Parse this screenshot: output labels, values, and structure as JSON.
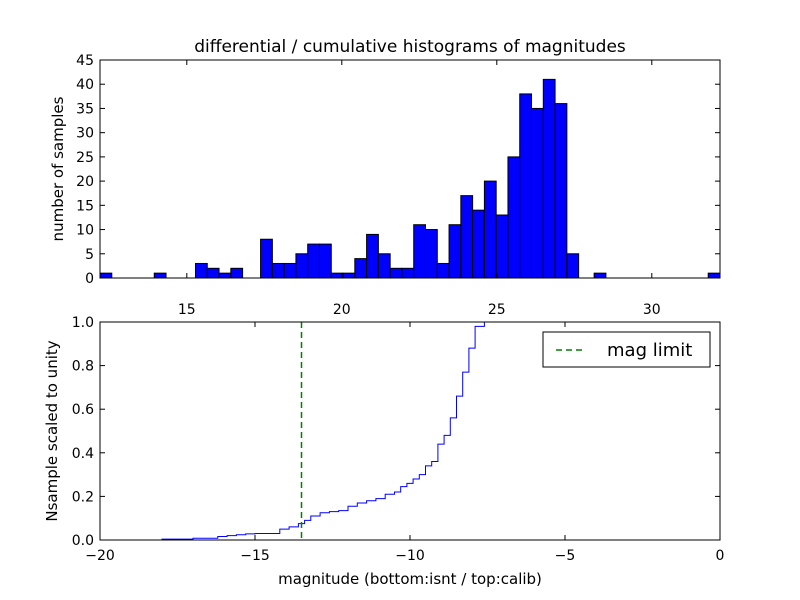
{
  "chart_data": [
    {
      "type": "bar",
      "title": "differential / cumulative histograms of magnitudes",
      "xlabel": "",
      "ylabel": "number of samples",
      "xlim": [
        12.2,
        32.2
      ],
      "ylim": [
        0,
        45
      ],
      "x_ticks": [
        15,
        20,
        25,
        30
      ],
      "x_tick_labels": [
        "15",
        "20",
        "25",
        "30"
      ],
      "y_ticks": [
        0,
        5,
        10,
        15,
        20,
        25,
        30,
        35,
        40,
        45
      ],
      "y_tick_labels": [
        "0",
        "5",
        "10",
        "15",
        "20",
        "25",
        "30",
        "35",
        "40",
        "45"
      ],
      "bin_width": 0.38,
      "bar_color": "#0000ff",
      "bins": [
        {
          "x0": 12.2,
          "count": 1
        },
        {
          "x0": 13.95,
          "count": 1
        },
        {
          "x0": 15.28,
          "count": 3
        },
        {
          "x0": 15.66,
          "count": 2
        },
        {
          "x0": 16.04,
          "count": 1
        },
        {
          "x0": 16.42,
          "count": 2
        },
        {
          "x0": 17.38,
          "count": 8
        },
        {
          "x0": 17.76,
          "count": 3
        },
        {
          "x0": 18.14,
          "count": 3
        },
        {
          "x0": 18.52,
          "count": 5
        },
        {
          "x0": 18.9,
          "count": 7
        },
        {
          "x0": 19.28,
          "count": 7
        },
        {
          "x0": 19.66,
          "count": 1
        },
        {
          "x0": 20.04,
          "count": 1
        },
        {
          "x0": 20.42,
          "count": 4
        },
        {
          "x0": 20.8,
          "count": 9
        },
        {
          "x0": 21.18,
          "count": 5
        },
        {
          "x0": 21.56,
          "count": 2
        },
        {
          "x0": 21.94,
          "count": 2
        },
        {
          "x0": 22.32,
          "count": 11
        },
        {
          "x0": 22.7,
          "count": 10
        },
        {
          "x0": 23.08,
          "count": 3
        },
        {
          "x0": 23.46,
          "count": 11
        },
        {
          "x0": 23.84,
          "count": 17
        },
        {
          "x0": 24.22,
          "count": 14
        },
        {
          "x0": 24.6,
          "count": 20
        },
        {
          "x0": 24.98,
          "count": 13
        },
        {
          "x0": 25.36,
          "count": 25
        },
        {
          "x0": 25.74,
          "count": 38
        },
        {
          "x0": 26.12,
          "count": 35
        },
        {
          "x0": 26.5,
          "count": 41
        },
        {
          "x0": 26.88,
          "count": 36
        },
        {
          "x0": 27.26,
          "count": 5
        },
        {
          "x0": 28.14,
          "count": 1
        },
        {
          "x0": 31.82,
          "count": 1
        }
      ]
    },
    {
      "type": "line",
      "xlabel": "magnitude (bottom:isnt / top:calib)",
      "ylabel": "Nsample scaled to unity",
      "xlim": [
        -20,
        0
      ],
      "ylim": [
        0,
        1
      ],
      "x_ticks": [
        -20,
        -15,
        -10,
        -5,
        0
      ],
      "x_tick_labels": [
        "−20",
        "−15",
        "−10",
        "−5",
        "0"
      ],
      "y_ticks": [
        0,
        0.2,
        0.4,
        0.6,
        0.8,
        1.0
      ],
      "y_tick_labels": [
        "0.0",
        "0.2",
        "0.4",
        "0.6",
        "0.8",
        "1.0"
      ],
      "legend_position": "top-right",
      "series": [
        {
          "style": "step",
          "color": "#0000ff",
          "x": [
            -20,
            -18.0,
            -17.0,
            -16.2,
            -15.9,
            -15.6,
            -15.3,
            -15.0,
            -14.2,
            -13.9,
            -13.6,
            -13.4,
            -13.2,
            -12.9,
            -12.6,
            -12.3,
            -12.0,
            -11.7,
            -11.4,
            -11.1,
            -10.8,
            -10.5,
            -10.3,
            -10.1,
            -9.9,
            -9.7,
            -9.5,
            -9.3,
            -9.1,
            -8.9,
            -8.7,
            -8.5,
            -8.3,
            -8.1,
            -7.9,
            -7.6,
            -7.3,
            -0.05
          ],
          "y": [
            0,
            0.004,
            0.008,
            0.016,
            0.02,
            0.024,
            0.028,
            0.03,
            0.05,
            0.06,
            0.075,
            0.09,
            0.11,
            0.125,
            0.13,
            0.135,
            0.155,
            0.17,
            0.18,
            0.19,
            0.21,
            0.22,
            0.245,
            0.26,
            0.28,
            0.3,
            0.34,
            0.36,
            0.44,
            0.48,
            0.56,
            0.66,
            0.77,
            0.88,
            0.98,
            1.0,
            1.0,
            1.0
          ]
        },
        {
          "name": "mag limit",
          "style": "vline-dashed",
          "color": "#008000",
          "x_value": -13.5
        }
      ]
    }
  ]
}
